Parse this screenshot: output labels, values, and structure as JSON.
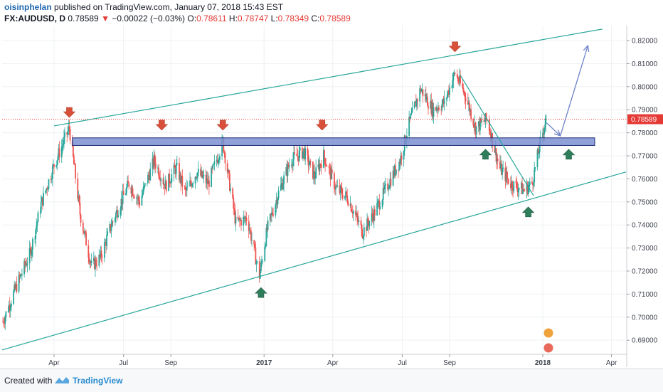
{
  "header": {
    "author": "oisinphelan",
    "published": "published on TradingView.com, January 07, 2018 15:43 EST",
    "symbol": "FX:AUDUSD, D",
    "last": "0.78589",
    "down_arrow": "▼",
    "change": "−0.00022 (−0.03%)",
    "o_label": "O:",
    "o_value": "0.78611",
    "h_label": "H:",
    "h_value": "0.78747",
    "l_label": "L:",
    "l_value": "0.78349",
    "c_label": "C:",
    "c_value": "0.78589"
  },
  "footer": {
    "created_with": "Created with",
    "brand": "TradingView"
  },
  "colors": {
    "up": "#26a69a",
    "down": "#ef5350",
    "trendline": "#26a69a",
    "zone_fill": "#7d8fd2",
    "zone_border": "#1d2b73",
    "arrow_red": "#d9503a",
    "arrow_green": "#2e7d5b",
    "projection": "#6e82c8",
    "price_line": "#e53935",
    "price_label_bg": "#e53935"
  },
  "chart_data": {
    "type": "candlestick",
    "instrument": "FX:AUDUSD",
    "timeframe": "D",
    "ylim": [
      0.6845,
      0.8265
    ],
    "y_ticks": [
      0.69,
      0.7,
      0.71,
      0.72,
      0.73,
      0.74,
      0.75,
      0.76,
      0.77,
      0.78,
      0.79,
      0.8,
      0.81,
      0.82
    ],
    "y_tick_labels": [
      "0.69000",
      "0.70000",
      "0.71000",
      "0.72000",
      "0.73000",
      "0.74000",
      "0.75000",
      "0.76000",
      "0.77000",
      "0.78000",
      "0.79000",
      "0.80000",
      "0.81000",
      "0.82000"
    ],
    "x_range": [
      "2016-01-24",
      "2018-04-20"
    ],
    "x_ticks": [
      {
        "date": "2016-04-01",
        "label": "Apr",
        "bold": false
      },
      {
        "date": "2016-07-01",
        "label": "Jul",
        "bold": false
      },
      {
        "date": "2016-09-01",
        "label": "Sep",
        "bold": false
      },
      {
        "date": "2017-01-01",
        "label": "2017",
        "bold": true
      },
      {
        "date": "2017-04-01",
        "label": "Apr",
        "bold": false
      },
      {
        "date": "2017-07-01",
        "label": "Jul",
        "bold": false
      },
      {
        "date": "2017-09-01",
        "label": "Sep",
        "bold": false
      },
      {
        "date": "2018-01-01",
        "label": "2018",
        "bold": true
      },
      {
        "date": "2018-04-01",
        "label": "Apr",
        "bold": false
      }
    ],
    "last_price": 0.78589,
    "last_price_label": "0.78589",
    "price_path": [
      [
        "2016-01-25",
        0.698
      ],
      [
        "2016-02-10",
        0.712
      ],
      [
        "2016-03-01",
        0.728
      ],
      [
        "2016-03-15",
        0.749
      ],
      [
        "2016-04-01",
        0.766
      ],
      [
        "2016-04-21",
        0.782
      ],
      [
        "2016-05-05",
        0.745
      ],
      [
        "2016-05-20",
        0.722
      ],
      [
        "2016-06-01",
        0.726
      ],
      [
        "2016-06-15",
        0.74
      ],
      [
        "2016-06-25",
        0.748
      ],
      [
        "2016-07-08",
        0.758
      ],
      [
        "2016-07-22",
        0.75
      ],
      [
        "2016-08-10",
        0.768
      ],
      [
        "2016-08-25",
        0.757
      ],
      [
        "2016-09-08",
        0.765
      ],
      [
        "2016-09-20",
        0.754
      ],
      [
        "2016-10-05",
        0.763
      ],
      [
        "2016-10-20",
        0.758
      ],
      [
        "2016-11-08",
        0.776
      ],
      [
        "2016-11-25",
        0.741
      ],
      [
        "2016-12-10",
        0.743
      ],
      [
        "2016-12-26",
        0.718
      ],
      [
        "2017-01-05",
        0.738
      ],
      [
        "2017-01-20",
        0.754
      ],
      [
        "2017-02-05",
        0.768
      ],
      [
        "2017-02-22",
        0.772
      ],
      [
        "2017-03-08",
        0.761
      ],
      [
        "2017-03-20",
        0.77
      ],
      [
        "2017-04-05",
        0.756
      ],
      [
        "2017-04-20",
        0.752
      ],
      [
        "2017-05-10",
        0.737
      ],
      [
        "2017-05-25",
        0.745
      ],
      [
        "2017-06-10",
        0.756
      ],
      [
        "2017-06-28",
        0.768
      ],
      [
        "2017-07-10",
        0.784
      ],
      [
        "2017-07-25",
        0.799
      ],
      [
        "2017-08-10",
        0.79
      ],
      [
        "2017-08-25",
        0.793
      ],
      [
        "2017-09-08",
        0.806
      ],
      [
        "2017-09-22",
        0.796
      ],
      [
        "2017-10-05",
        0.782
      ],
      [
        "2017-10-20",
        0.786
      ],
      [
        "2017-11-05",
        0.765
      ],
      [
        "2017-11-20",
        0.758
      ],
      [
        "2017-12-08",
        0.755
      ],
      [
        "2017-12-18",
        0.758
      ],
      [
        "2017-12-27",
        0.773
      ],
      [
        "2018-01-05",
        0.7859
      ]
    ],
    "shapes": {
      "resistance_zone": {
        "x_start": "2016-04-25",
        "x_end": "2018-03-10",
        "y_low": 0.7745,
        "y_high": 0.7778
      },
      "channel_top": [
        [
          "2016-04-01",
          0.783
        ],
        [
          "2018-03-20",
          0.825
        ]
      ],
      "channel_bottom": [
        [
          "2016-01-24",
          0.6858
        ],
        [
          "2018-04-20",
          0.763
        ]
      ],
      "falling_trendline": [
        [
          "2017-09-15",
          0.805
        ],
        [
          "2017-12-20",
          0.7527
        ]
      ],
      "projection_path": [
        [
          "2018-01-06",
          0.7843
        ],
        [
          "2018-01-24",
          0.7787
        ],
        [
          "2018-03-01",
          0.8178
        ]
      ]
    },
    "markers": [
      {
        "type": "down",
        "date": "2016-04-21",
        "value": 0.7885
      },
      {
        "type": "down",
        "date": "2016-08-20",
        "value": 0.783
      },
      {
        "type": "down",
        "date": "2016-11-08",
        "value": 0.783
      },
      {
        "type": "down",
        "date": "2017-03-18",
        "value": 0.783
      },
      {
        "type": "down",
        "date": "2017-09-08",
        "value": 0.817
      },
      {
        "type": "up",
        "date": "2016-12-28",
        "value": 0.711
      },
      {
        "type": "up",
        "date": "2017-10-18",
        "value": 0.771
      },
      {
        "type": "up",
        "date": "2017-12-13",
        "value": 0.746
      },
      {
        "type": "up",
        "date": "2018-02-04",
        "value": 0.771
      }
    ]
  }
}
